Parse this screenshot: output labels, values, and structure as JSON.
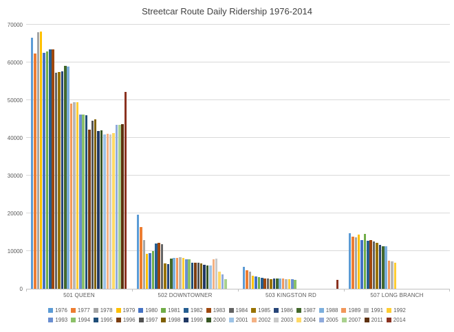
{
  "chart_data": {
    "type": "bar",
    "title": "Streetcar Route Daily Ridership 1976-2014",
    "xlabel": "",
    "ylabel": "",
    "ylim": [
      0,
      70000
    ],
    "y_ticks": [
      0,
      10000,
      20000,
      30000,
      40000,
      50000,
      60000,
      70000
    ],
    "grid": true,
    "legend_position": "bottom",
    "categories": [
      "501 QUEEN",
      "502 DOWNTOWNER",
      "503 KINGSTON RD",
      "507 LONG BRANCH"
    ],
    "series": [
      {
        "name": "1976",
        "color": "#5B9BD5",
        "values": [
          66500,
          19600,
          5800,
          14800
        ]
      },
      {
        "name": "1977",
        "color": "#ED7D31",
        "values": [
          62300,
          16300,
          5000,
          13800
        ]
      },
      {
        "name": "1978",
        "color": "#A5A5A5",
        "values": [
          68000,
          12900,
          4600,
          13600
        ]
      },
      {
        "name": "1979",
        "color": "#FFC000",
        "values": [
          68200,
          9300,
          3400,
          14300
        ]
      },
      {
        "name": "1980",
        "color": "#4472C4",
        "values": [
          62600,
          9500,
          3300,
          13000
        ]
      },
      {
        "name": "1981",
        "color": "#70AD47",
        "values": [
          62900,
          10000,
          3100,
          14500
        ]
      },
      {
        "name": "1982",
        "color": "#255E91",
        "values": [
          63400,
          12000,
          2900,
          12800
        ]
      },
      {
        "name": "1983",
        "color": "#9E480E",
        "values": [
          63500,
          12100,
          2800,
          13000
        ]
      },
      {
        "name": "1984",
        "color": "#636363",
        "values": [
          57200,
          11800,
          2700,
          12600
        ]
      },
      {
        "name": "1985",
        "color": "#997300",
        "values": [
          57500,
          6800,
          2600,
          12200
        ]
      },
      {
        "name": "1986",
        "color": "#264478",
        "values": [
          57700,
          6500,
          2700,
          11600
        ]
      },
      {
        "name": "1987",
        "color": "#43682B",
        "values": [
          59100,
          8000,
          2700,
          11200
        ]
      },
      {
        "name": "1988",
        "color": "#7CAFDD",
        "values": [
          59000,
          8100,
          2700,
          11300
        ]
      },
      {
        "name": "1989",
        "color": "#F1975A",
        "values": [
          49100,
          8200,
          2700,
          7500
        ]
      },
      {
        "name": "1991",
        "color": "#B7B7B7",
        "values": [
          49400,
          8300,
          2600,
          7200
        ]
      },
      {
        "name": "1992",
        "color": "#FFCD33",
        "values": [
          49400,
          8100,
          2500,
          7000
        ]
      },
      {
        "name": "1993",
        "color": "#698ED0",
        "values": [
          46100,
          7900,
          2500,
          0
        ]
      },
      {
        "name": "1994",
        "color": "#8CC168",
        "values": [
          46200,
          7800,
          2400,
          0
        ]
      },
      {
        "name": "1995",
        "color": "#1F4E79",
        "values": [
          46000,
          7000,
          0,
          0
        ]
      },
      {
        "name": "1996",
        "color": "#7B3D10",
        "values": [
          42100,
          6900,
          0,
          0
        ]
      },
      {
        "name": "1997",
        "color": "#525252",
        "values": [
          44600,
          7000,
          0,
          0
        ]
      },
      {
        "name": "1998",
        "color": "#7F6000",
        "values": [
          45000,
          6800,
          0,
          0
        ]
      },
      {
        "name": "1999",
        "color": "#203864",
        "values": [
          41900,
          6300,
          0,
          0
        ]
      },
      {
        "name": "2000",
        "color": "#375623",
        "values": [
          42000,
          6200,
          0,
          0
        ]
      },
      {
        "name": "2001",
        "color": "#9DC3E6",
        "values": [
          41000,
          6100,
          0,
          0
        ]
      },
      {
        "name": "2002",
        "color": "#F4B183",
        "values": [
          41100,
          7800,
          0,
          0
        ]
      },
      {
        "name": "2003",
        "color": "#C9C9C9",
        "values": [
          41000,
          8000,
          0,
          0
        ]
      },
      {
        "name": "2004",
        "color": "#FFD966",
        "values": [
          41300,
          4500,
          0,
          0
        ]
      },
      {
        "name": "2005",
        "color": "#8FAADC",
        "values": [
          43400,
          3800,
          0,
          0
        ]
      },
      {
        "name": "2007",
        "color": "#A9D18E",
        "values": [
          43500,
          2500,
          0,
          0
        ]
      },
      {
        "name": "2011",
        "color": "#5E3210",
        "values": [
          43600,
          0,
          0,
          0
        ]
      },
      {
        "name": "2014",
        "color": "#8B3220",
        "values": [
          52200,
          0,
          2300,
          0
        ]
      }
    ]
  }
}
